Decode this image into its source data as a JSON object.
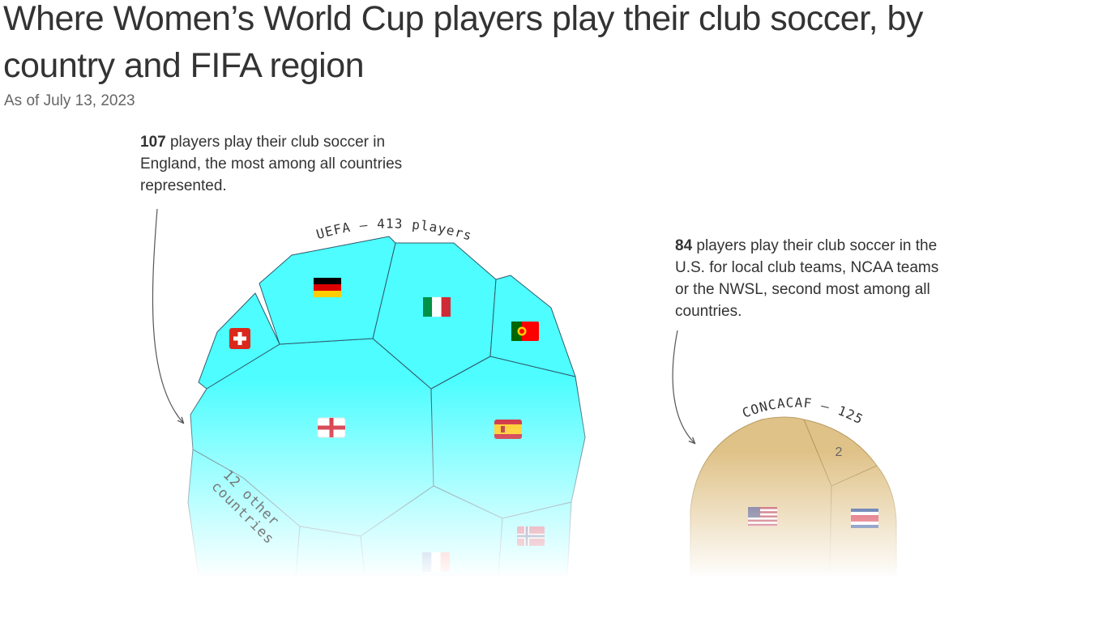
{
  "title": "Where Women’s World Cup players play their club soccer, by country and FIFA region",
  "subtitle": "As of July 13, 2023",
  "annotations": {
    "england": {
      "value": "107",
      "text": " players play their club soccer in England, the most among all countries represented."
    },
    "usa": {
      "value": "84",
      "text": " players play their club soccer in the U.S. for local club teams, NCAA teams or the NWSL, second most among all countries."
    }
  },
  "colors": {
    "uefa": "#4dfdff",
    "concacaf": "#dfc288",
    "cell_stroke": "#2f5a6a",
    "concacaf_stroke": "#b89a60",
    "text": "#333333"
  },
  "chart_data": {
    "type": "voronoi-treemap",
    "regions": [
      {
        "name": "UEFA",
        "label": "UEFA – 413 players",
        "total": 413,
        "cells": [
          {
            "country": "England",
            "flag": "england-flag-icon",
            "value": 107
          },
          {
            "country": "Spain",
            "flag": "spain-flag-icon"
          },
          {
            "country": "Italy",
            "flag": "italy-flag-icon"
          },
          {
            "country": "Germany",
            "flag": "germany-flag-icon"
          },
          {
            "country": "Portugal",
            "flag": "portugal-flag-icon"
          },
          {
            "country": "Switzerland",
            "flag": "switzerland-flag-icon"
          },
          {
            "country": "Norway",
            "flag": "norway-flag-icon"
          },
          {
            "country": "France",
            "flag": "france-flag-icon"
          },
          {
            "country": "12 other countries",
            "label": "12 other countries"
          }
        ]
      },
      {
        "name": "CONCACAF",
        "label": "CONCACAF – 125",
        "total": 125,
        "cells": [
          {
            "country": "United States",
            "flag": "usa-flag-icon",
            "value": 84
          },
          {
            "country": "Costa Rica",
            "flag": "costa-rica-flag-icon"
          },
          {
            "country": "2",
            "label": "2"
          }
        ]
      }
    ]
  }
}
